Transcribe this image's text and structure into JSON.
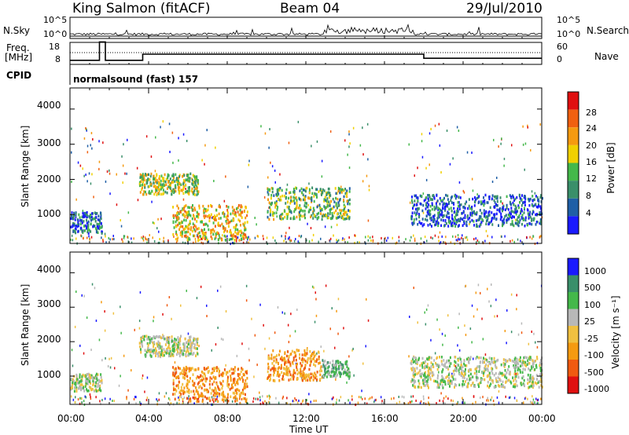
{
  "header": {
    "station": "King Salmon (fitACF)",
    "beam": "Beam 04",
    "date": "29/Jul/2010"
  },
  "strip": {
    "nsky_label": "N.Sky",
    "nsky_ticks": [
      "10^5",
      "10^0"
    ],
    "nsearch_label": "N.Search",
    "nsearch_ticks": [
      "10^5",
      "10^0"
    ],
    "freq_label_1": "Freq.",
    "freq_label_2": "[MHz]",
    "freq_ticks": [
      "18",
      "8"
    ],
    "nave_label": "Nave",
    "nave_ticks": [
      "60",
      "0"
    ],
    "cpid_label": "CPID",
    "cpid_value": "normalsound (fast) 157"
  },
  "colors": {
    "power": [
      "#1a1aff",
      "#1f5fa6",
      "#3a8f6a",
      "#44b84a",
      "#f0d000",
      "#f59a10",
      "#f06010",
      "#e01010"
    ],
    "velocity": [
      "#e01010",
      "#f05a10",
      "#f59a10",
      "#f0c040",
      "#b8b8b8",
      "#44b84a",
      "#3a8f6a",
      "#1a1aff"
    ]
  },
  "chart_data": [
    {
      "type": "heatmap",
      "title": "",
      "xlabel": "",
      "ylabel": "Slant Range [km]",
      "xlim": [
        0,
        24
      ],
      "ylim": [
        180,
        4600
      ],
      "yticks": [
        "1000",
        "2000",
        "3000",
        "4000"
      ],
      "colorbar_label": "Power [dB]",
      "colorbar_ticks": [
        "4",
        "8",
        "12",
        "16",
        "20",
        "24",
        "28"
      ],
      "colorbar_range": [
        0,
        32
      ],
      "features": [
        {
          "t_start": 0.0,
          "t_end": 1.6,
          "range_start": 500,
          "range_end": 1100,
          "value": 8
        },
        {
          "t_start": 3.5,
          "t_end": 6.5,
          "range_start": 1600,
          "range_end": 2200,
          "value": 18
        },
        {
          "t_start": 5.2,
          "t_end": 9.0,
          "range_start": 300,
          "range_end": 1300,
          "value": 22
        },
        {
          "t_start": 10.0,
          "t_end": 14.2,
          "range_start": 900,
          "range_end": 1800,
          "value": 16
        },
        {
          "t_start": 17.3,
          "t_end": 24.0,
          "range_start": 700,
          "range_end": 1600,
          "value": 8
        }
      ]
    },
    {
      "type": "heatmap",
      "title": "",
      "xlabel": "Time UT",
      "ylabel": "Slant Range [km]",
      "xlim": [
        0,
        24
      ],
      "ylim": [
        180,
        4600
      ],
      "xticks": [
        "00:00",
        "04:00",
        "08:00",
        "12:00",
        "16:00",
        "20:00",
        "00:00"
      ],
      "yticks": [
        "1000",
        "2000",
        "3000",
        "4000"
      ],
      "colorbar_label": "Velocity [m s⁻¹]",
      "colorbar_ticks": [
        "1000",
        "500",
        "100",
        "25",
        "-25",
        "-100",
        "-500",
        "-1000"
      ],
      "colorbar_range": [
        -1000,
        1000
      ],
      "features": [
        {
          "t_start": 0.0,
          "t_end": 1.6,
          "range_start": 600,
          "range_end": 1100,
          "value": 0
        },
        {
          "t_start": 3.5,
          "t_end": 6.5,
          "range_start": 1600,
          "range_end": 2200,
          "value": 0
        },
        {
          "t_start": 5.2,
          "t_end": 9.0,
          "range_start": 300,
          "range_end": 1300,
          "value": -100
        },
        {
          "t_start": 10.0,
          "t_end": 12.8,
          "range_start": 900,
          "range_end": 1800,
          "value": -300
        },
        {
          "t_start": 12.8,
          "t_end": 14.2,
          "range_start": 1000,
          "range_end": 1500,
          "value": 100
        },
        {
          "t_start": 17.3,
          "t_end": 24.0,
          "range_start": 700,
          "range_end": 1600,
          "value": 0
        }
      ]
    }
  ]
}
